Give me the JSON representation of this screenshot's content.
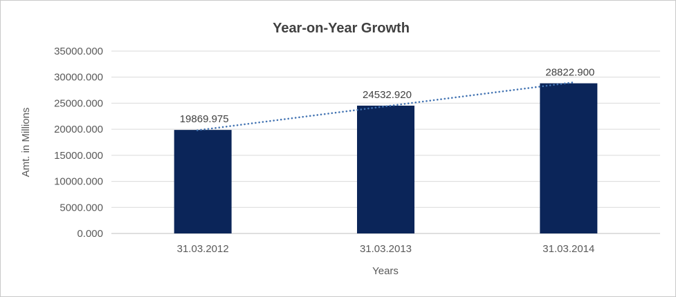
{
  "chart_data": {
    "type": "bar",
    "title": "Year-on-Year Growth",
    "xlabel": "Years",
    "ylabel": "Amt. in Millions",
    "categories": [
      "31.03.2012",
      "31.03.2013",
      "31.03.2014"
    ],
    "values": [
      19869.975,
      24532.92,
      28822.9
    ],
    "data_labels": [
      "19869.975",
      "24532.920",
      "28822.900"
    ],
    "ylim": [
      0,
      35000
    ],
    "ytick_step": 5000,
    "ytick_decimals": 3,
    "grid": true,
    "legend": "none",
    "trendline": {
      "type": "linear",
      "style": "dotted"
    },
    "colors": {
      "bar": "#0b2559",
      "trendline": "#4273b2",
      "gridline": "#d9d9d9",
      "axis_line": "#bfbfbf",
      "tick_text": "#595959",
      "title_text": "#404040",
      "label_text": "#404040",
      "background": "#ffffff",
      "border": "#c9c9c9"
    }
  }
}
